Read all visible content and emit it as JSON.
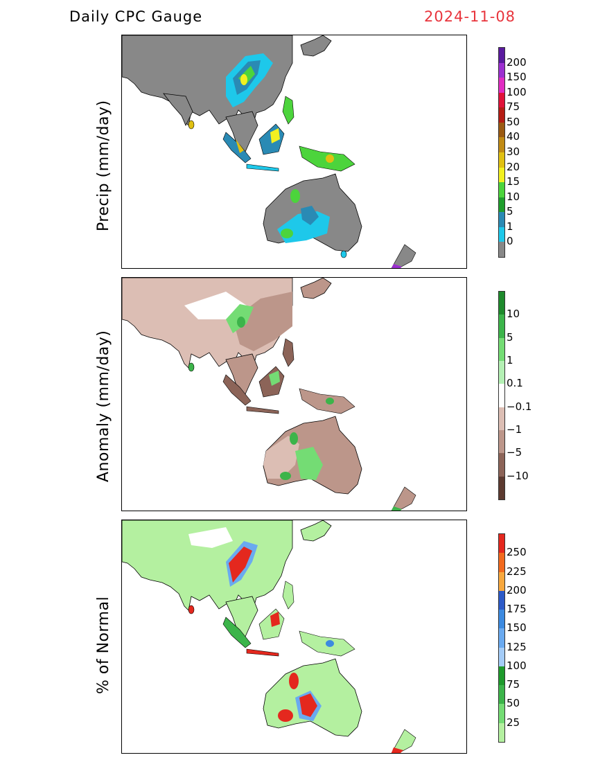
{
  "header": {
    "title": "Daily CPC Gauge",
    "date": "2024-11-08"
  },
  "panels": [
    {
      "ylabel": "Precip (mm/day)",
      "colorbar": {
        "labels": [
          "200",
          "150",
          "100",
          "75",
          "50",
          "40",
          "30",
          "20",
          "15",
          "10",
          "5",
          "1",
          "0"
        ],
        "colors": [
          "#5a1a9e",
          "#9c2fd0",
          "#e02cc2",
          "#e0123a",
          "#b41c14",
          "#9a5a12",
          "#c08a14",
          "#e0c012",
          "#f2f020",
          "#4cd43c",
          "#1e9e2c",
          "#2a8ab4",
          "#1ec8ea",
          "#888888"
        ]
      }
    },
    {
      "ylabel": "Anomaly (mm/day)",
      "colorbar": {
        "labels": [
          "10",
          "5",
          "1",
          "0.1",
          "−0.1",
          "−1",
          "−5",
          "−10"
        ],
        "colors": [
          "#1e8a2c",
          "#3cb44a",
          "#74dc74",
          "#b4f0b4",
          "#ffffff",
          "#dcbeb4",
          "#bc968a",
          "#8c6458",
          "#5c3a30"
        ]
      }
    },
    {
      "ylabel": "% of Normal",
      "colorbar": {
        "labels": [
          "250",
          "225",
          "200",
          "175",
          "150",
          "125",
          "100",
          "75",
          "50",
          "25"
        ],
        "colors": [
          "#e4281e",
          "#f26a1e",
          "#f8a83e",
          "#2c5ac8",
          "#3c8ae0",
          "#6aaaf0",
          "#a4ccf8",
          "#1e9a2c",
          "#3cb44a",
          "#74dc74",
          "#b4f0a0"
        ]
      }
    }
  ]
}
